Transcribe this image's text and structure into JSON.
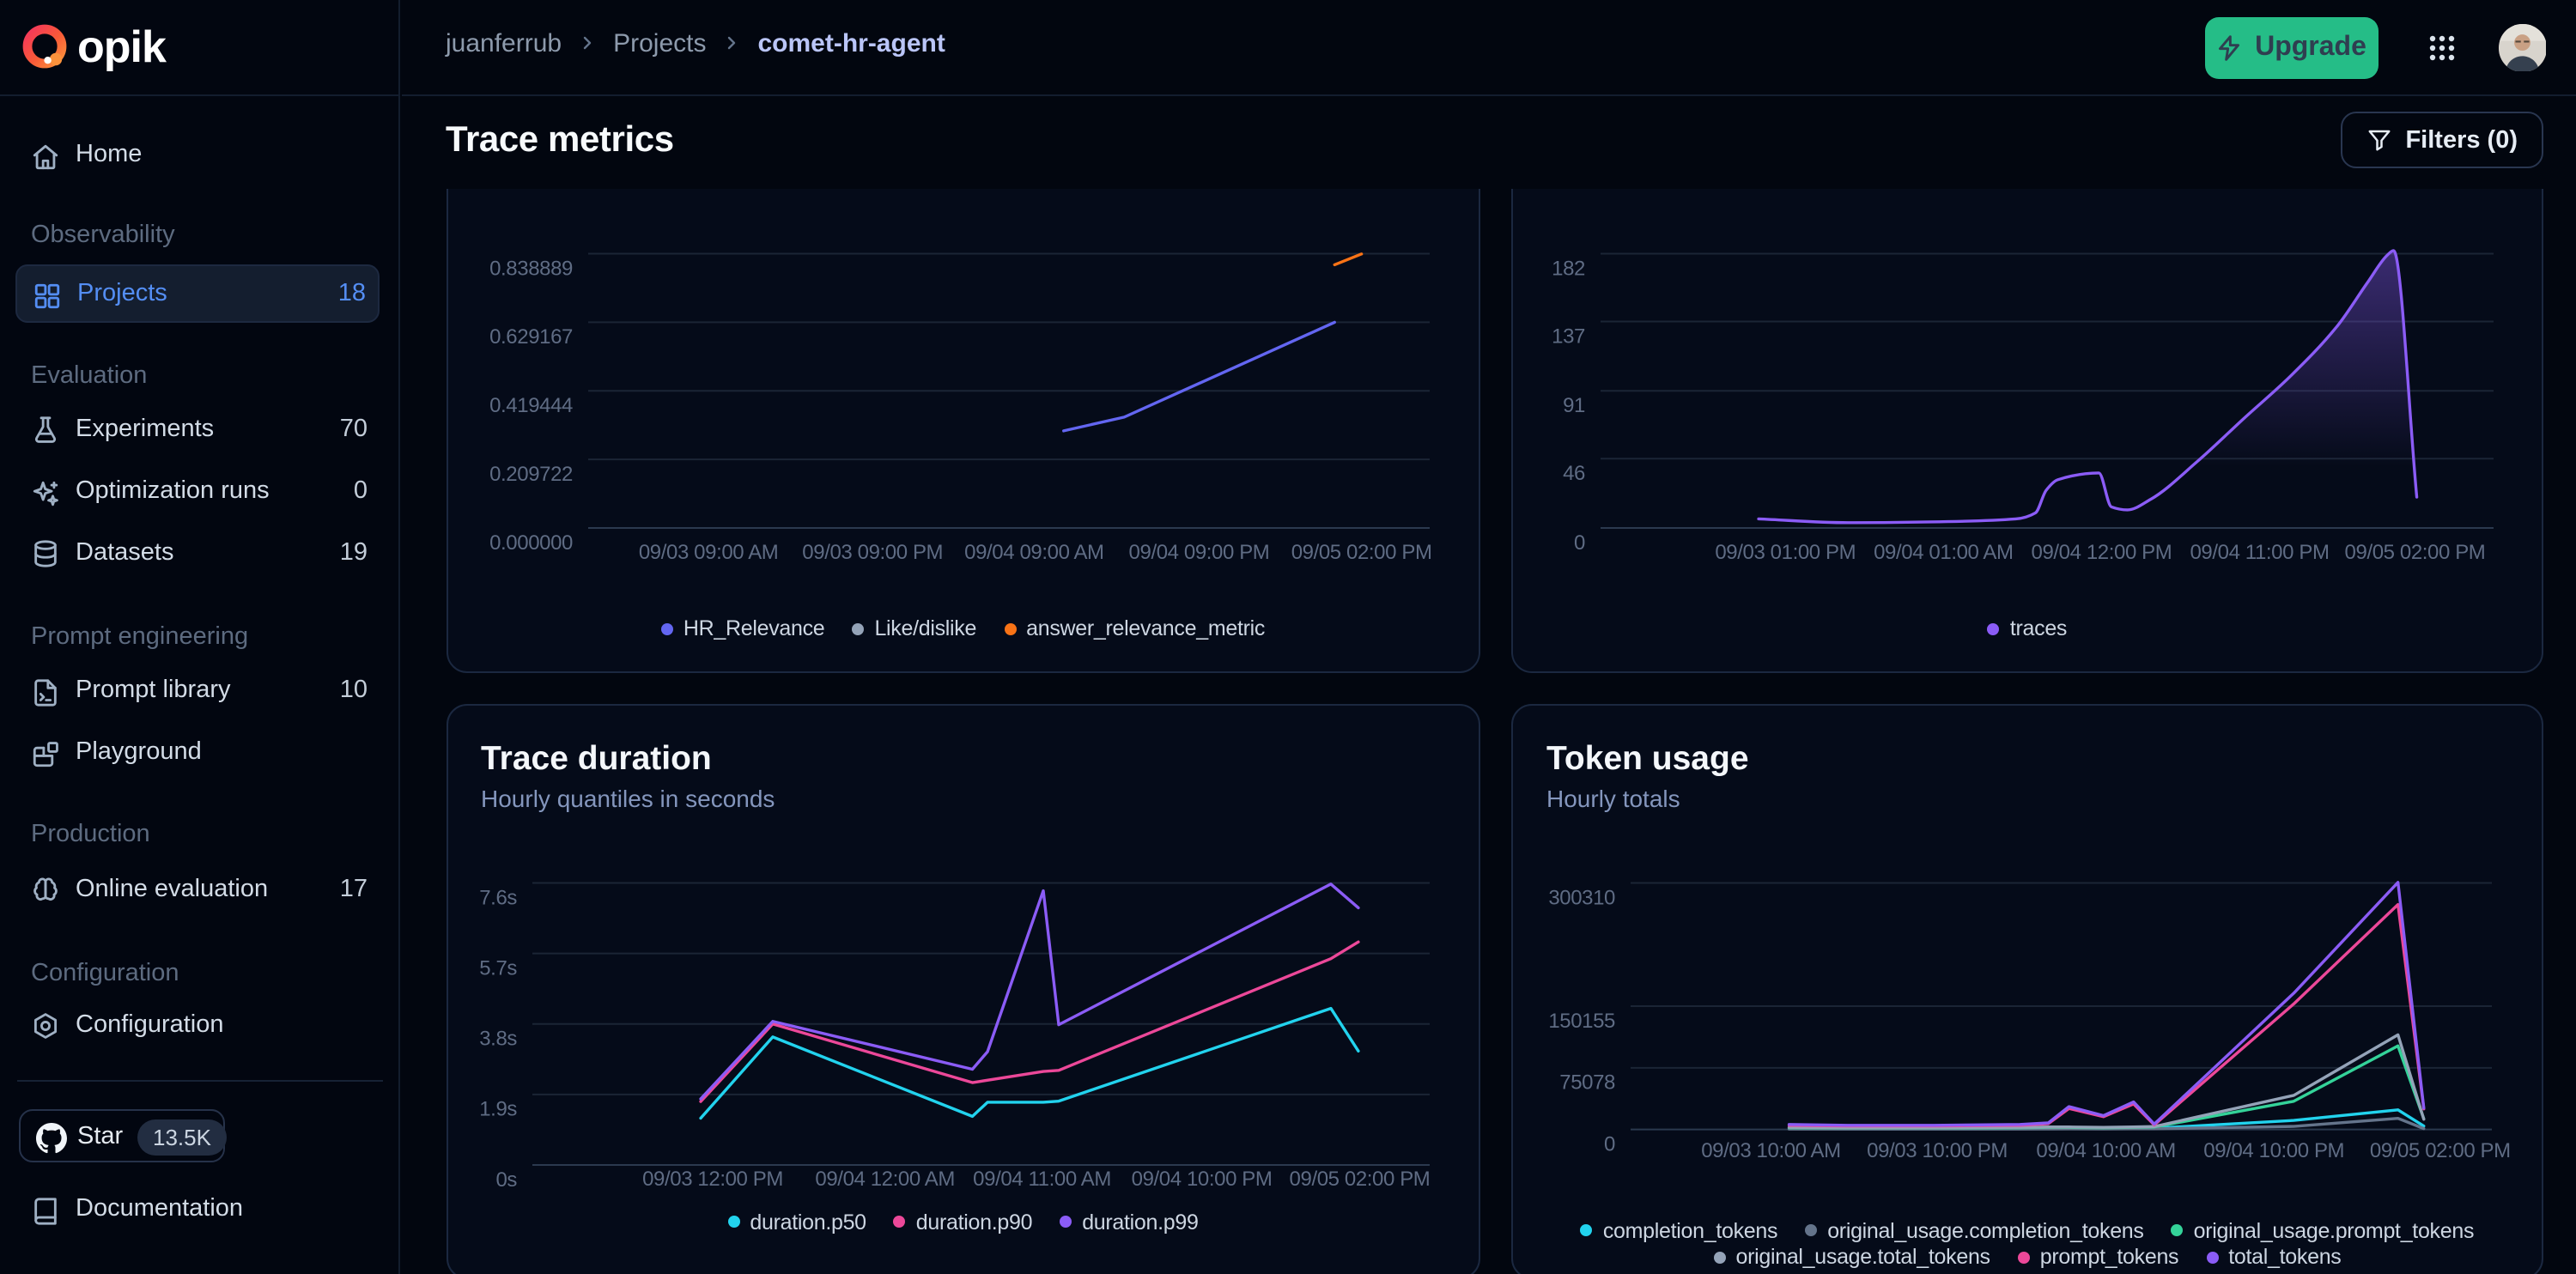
{
  "sidebar": {
    "logo_text": "opik",
    "sections": [
      {
        "header": null,
        "items": [
          {
            "label": "Home",
            "icon": "home",
            "count": null
          }
        ]
      },
      {
        "header": "Observability",
        "items": [
          {
            "label": "Projects",
            "icon": "projects",
            "count": "18",
            "selected": true
          }
        ]
      },
      {
        "header": "Evaluation",
        "items": [
          {
            "label": "Experiments",
            "icon": "flask",
            "count": "70"
          },
          {
            "label": "Optimization runs",
            "icon": "sparkles",
            "count": "0"
          },
          {
            "label": "Datasets",
            "icon": "database",
            "count": "19"
          }
        ]
      },
      {
        "header": "Prompt engineering",
        "items": [
          {
            "label": "Prompt library",
            "icon": "file-terminal",
            "count": "10"
          },
          {
            "label": "Playground",
            "icon": "blocks",
            "count": null
          }
        ]
      },
      {
        "header": "Production",
        "items": [
          {
            "label": "Online evaluation",
            "icon": "brain",
            "count": "17"
          }
        ]
      },
      {
        "header": "Configuration",
        "items": [
          {
            "label": "Configuration",
            "icon": "settings",
            "count": null
          }
        ]
      }
    ],
    "star_label": "Star",
    "star_count": "13.5K",
    "documentation_label": "Documentation"
  },
  "topbar": {
    "breadcrumb": [
      "juanferrub",
      "Projects",
      "comet-hr-agent"
    ],
    "upgrade_label": "Upgrade"
  },
  "page": {
    "title": "Trace metrics",
    "filters_label": "Filters (0)"
  },
  "colors": {
    "accent_blue": "#548ef4",
    "upgrade_green": "#25bd87",
    "indigo": "#6366f1",
    "violet": "#8b5cf6",
    "orange": "#f97316",
    "pink": "#ec4899",
    "cyan": "#22d3ee",
    "emerald": "#34d399",
    "slate": "#64748b",
    "slate_light": "#94a3b8"
  },
  "chart_data": [
    {
      "id": "feedback",
      "type": "line",
      "title": null,
      "subtitle": null,
      "ylim": [
        0,
        0.838889
      ],
      "yticks": [
        {
          "v": 0.838889,
          "label": "0.838889"
        },
        {
          "v": 0.629167,
          "label": "0.629167"
        },
        {
          "v": 0.419444,
          "label": "0.419444"
        },
        {
          "v": 0.209722,
          "label": "0.209722"
        },
        {
          "v": 0.0,
          "label": "0.000000"
        }
      ],
      "xticks": [
        {
          "f": 0.143,
          "label": "09/03 09:00 AM"
        },
        {
          "f": 0.338,
          "label": "09/03 09:00 PM"
        },
        {
          "f": 0.53,
          "label": "09/04 09:00 AM"
        },
        {
          "f": 0.726,
          "label": "09/04 09:00 PM"
        },
        {
          "f": 0.919,
          "label": "09/05 02:00 PM"
        }
      ],
      "series": [
        {
          "name": "HR_Relevance",
          "color": "#6366f1",
          "points": [
            [
              0.565,
              0.297
            ],
            [
              0.637,
              0.339
            ],
            [
              0.887,
              0.629
            ]
          ]
        },
        {
          "name": "Like/dislike",
          "color": "#94a3b8",
          "points": []
        },
        {
          "name": "answer_relevance_metric",
          "color": "#f97316",
          "points": [
            [
              0.887,
              0.805
            ],
            [
              0.919,
              0.838
            ]
          ]
        }
      ],
      "legend_lines": [
        3
      ]
    },
    {
      "id": "traces",
      "type": "line",
      "title": null,
      "subtitle": null,
      "ylim": [
        0,
        182
      ],
      "yticks": [
        {
          "v": 182,
          "label": "182"
        },
        {
          "v": 137,
          "label": "137"
        },
        {
          "v": 91,
          "label": "91"
        },
        {
          "v": 46,
          "label": "46"
        },
        {
          "v": 0,
          "label": "0"
        }
      ],
      "xticks": [
        {
          "f": 0.207,
          "label": "09/03 01:00 PM"
        },
        {
          "f": 0.384,
          "label": "09/04 01:00 AM"
        },
        {
          "f": 0.561,
          "label": "09/04 12:00 PM"
        },
        {
          "f": 0.738,
          "label": "09/04 11:00 PM"
        },
        {
          "f": 0.912,
          "label": "09/05 02:00 PM"
        }
      ],
      "series": [
        {
          "name": "traces",
          "color": "#8b5cf6",
          "smooth": true,
          "area": true,
          "points": [
            [
              0.177,
              6
            ],
            [
              0.277,
              3.5
            ],
            [
              0.369,
              4
            ],
            [
              0.465,
              6
            ],
            [
              0.487,
              10
            ],
            [
              0.499,
              25
            ],
            [
              0.512,
              32
            ],
            [
              0.558,
              36.5
            ],
            [
              0.572,
              14
            ],
            [
              0.59,
              12
            ],
            [
              0.616,
              19
            ],
            [
              0.668,
              44
            ],
            [
              0.721,
              73
            ],
            [
              0.773,
              101
            ],
            [
              0.825,
              134
            ],
            [
              0.859,
              163
            ],
            [
              0.881,
              181
            ],
            [
              0.888,
              184
            ],
            [
              0.914,
              20.5
            ]
          ]
        }
      ],
      "legend_lines": [
        1
      ]
    },
    {
      "id": "duration",
      "type": "line",
      "title": "Trace duration",
      "subtitle": "Hourly quantiles in seconds",
      "ylim": [
        0,
        7.6
      ],
      "yticks": [
        {
          "v": 7.6,
          "label": "7.6s"
        },
        {
          "v": 5.7,
          "label": "5.7s"
        },
        {
          "v": 3.8,
          "label": "3.8s"
        },
        {
          "v": 1.9,
          "label": "1.9s"
        },
        {
          "v": 0,
          "label": "0s"
        }
      ],
      "xticks": [
        {
          "f": 0.201,
          "label": "09/03 12:00 PM"
        },
        {
          "f": 0.393,
          "label": "09/04 12:00 AM"
        },
        {
          "f": 0.568,
          "label": "09/04 11:00 AM"
        },
        {
          "f": 0.746,
          "label": "09/04 10:00 PM"
        },
        {
          "f": 0.922,
          "label": "09/05 02:00 PM"
        }
      ],
      "series": [
        {
          "name": "duration.p50",
          "color": "#22d3ee",
          "points": [
            [
              0.1876,
              1.26
            ],
            [
              0.2679,
              3.45
            ],
            [
              0.4904,
              1.31
            ],
            [
              0.5072,
              1.69
            ],
            [
              0.5694,
              1.69
            ],
            [
              0.5866,
              1.72
            ],
            [
              0.8899,
              4.22
            ],
            [
              0.9205,
              3.07
            ]
          ]
        },
        {
          "name": "duration.p90",
          "color": "#ec4899",
          "points": [
            [
              0.1876,
              1.71
            ],
            [
              0.2679,
              3.8
            ],
            [
              0.4904,
              2.22
            ],
            [
              0.5694,
              2.52
            ],
            [
              0.5866,
              2.55
            ],
            [
              0.8899,
              5.56
            ],
            [
              0.9205,
              6.01
            ]
          ]
        },
        {
          "name": "duration.p99",
          "color": "#8b5cf6",
          "points": [
            [
              0.1876,
              1.78
            ],
            [
              0.2679,
              3.87
            ],
            [
              0.4904,
              2.58
            ],
            [
              0.5072,
              3.05
            ],
            [
              0.5694,
              7.39
            ],
            [
              0.5866,
              3.78
            ],
            [
              0.8899,
              7.57
            ],
            [
              0.9205,
              6.93
            ]
          ]
        }
      ],
      "legend_lines": [
        3
      ]
    },
    {
      "id": "token",
      "type": "line",
      "title": "Token usage",
      "subtitle": "Hourly totals",
      "ylim": [
        0,
        300310
      ],
      "yticks": [
        {
          "v": 300310,
          "label": "300310"
        },
        {
          "v": 150155,
          "label": "150155"
        },
        {
          "v": 75078,
          "label": "75078"
        },
        {
          "v": 0,
          "label": "0"
        }
      ],
      "xticks": [
        {
          "f": 0.163,
          "label": "09/03 10:00 AM"
        },
        {
          "f": 0.356,
          "label": "09/03 10:00 PM"
        },
        {
          "f": 0.552,
          "label": "09/04 10:00 AM"
        },
        {
          "f": 0.747,
          "label": "09/04 10:00 PM"
        },
        {
          "f": 0.94,
          "label": "09/05 02:00 PM"
        }
      ],
      "series": [
        {
          "name": "completion_tokens",
          "color": "#22d3ee",
          "points": [
            [
              0.184,
              800
            ],
            [
              0.252,
              700
            ],
            [
              0.352,
              700
            ],
            [
              0.452,
              800
            ],
            [
              0.485,
              1000
            ],
            [
              0.509,
              1800
            ],
            [
              0.549,
              1200
            ],
            [
              0.584,
              2000
            ],
            [
              0.608,
              1500
            ],
            [
              0.77,
              11000
            ],
            [
              0.891,
              23900
            ],
            [
              0.921,
              4100
            ]
          ]
        },
        {
          "name": "original_usage.completion_tokens",
          "color": "#64748b",
          "points": [
            [
              0.184,
              500
            ],
            [
              0.252,
              400
            ],
            [
              0.352,
              400
            ],
            [
              0.452,
              500
            ],
            [
              0.485,
              600
            ],
            [
              0.509,
              700
            ],
            [
              0.549,
              600
            ],
            [
              0.584,
              800
            ],
            [
              0.608,
              800
            ],
            [
              0.77,
              3700
            ],
            [
              0.891,
              13500
            ],
            [
              0.921,
              1000
            ]
          ]
        },
        {
          "name": "original_usage.prompt_tokens",
          "color": "#34d399",
          "points": [
            [
              0.184,
              2000
            ],
            [
              0.252,
              1700
            ],
            [
              0.352,
              1700
            ],
            [
              0.452,
              2000
            ],
            [
              0.485,
              2500
            ],
            [
              0.509,
              2500
            ],
            [
              0.549,
              2000
            ],
            [
              0.584,
              2500
            ],
            [
              0.608,
              3000
            ],
            [
              0.77,
              34300
            ],
            [
              0.891,
              101800
            ],
            [
              0.921,
              13000
            ]
          ]
        },
        {
          "name": "original_usage.total_tokens",
          "color": "#94a3b8",
          "points": [
            [
              0.184,
              2500
            ],
            [
              0.252,
              2000
            ],
            [
              0.352,
              2000
            ],
            [
              0.452,
              2500
            ],
            [
              0.485,
              3000
            ],
            [
              0.509,
              3000
            ],
            [
              0.549,
              2500
            ],
            [
              0.584,
              3000
            ],
            [
              0.608,
              3500
            ],
            [
              0.77,
              41500
            ],
            [
              0.891,
              115300
            ],
            [
              0.921,
              12400
            ]
          ]
        },
        {
          "name": "prompt_tokens",
          "color": "#ec4899",
          "points": [
            [
              0.184,
              5000
            ],
            [
              0.252,
              4200
            ],
            [
              0.352,
              4200
            ],
            [
              0.452,
              5000
            ],
            [
              0.485,
              7000
            ],
            [
              0.509,
              25500
            ],
            [
              0.549,
              15500
            ],
            [
              0.584,
              31000
            ],
            [
              0.608,
              5500
            ],
            [
              0.77,
              153000
            ],
            [
              0.891,
              274000
            ],
            [
              0.921,
              25000
            ]
          ]
        },
        {
          "name": "total_tokens",
          "color": "#8b5cf6",
          "points": [
            [
              0.184,
              6000
            ],
            [
              0.252,
              5000
            ],
            [
              0.352,
              5000
            ],
            [
              0.452,
              6000
            ],
            [
              0.485,
              8000
            ],
            [
              0.509,
              27800
            ],
            [
              0.549,
              16800
            ],
            [
              0.584,
              33500
            ],
            [
              0.608,
              6500
            ],
            [
              0.77,
              166000
            ],
            [
              0.891,
              301000
            ],
            [
              0.921,
              26000
            ]
          ]
        }
      ],
      "legend_lines": [
        3,
        3
      ]
    }
  ]
}
